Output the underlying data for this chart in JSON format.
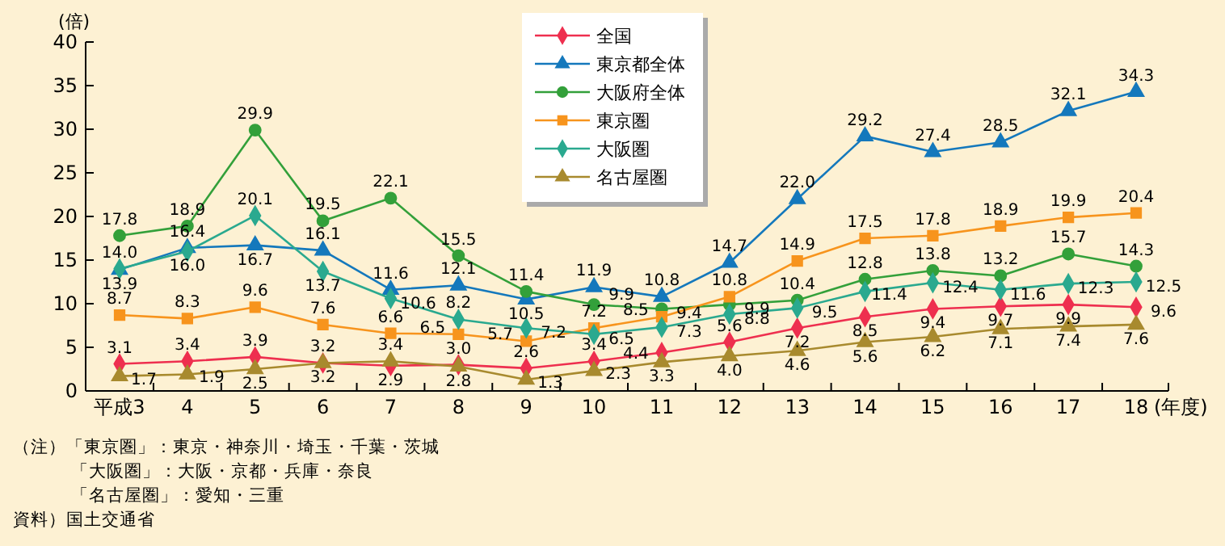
{
  "chart_data": {
    "type": "line",
    "ylabel": "(倍)",
    "xlabel": "(年度)",
    "categories": [
      "平成3",
      "4",
      "5",
      "6",
      "7",
      "8",
      "9",
      "10",
      "11",
      "12",
      "13",
      "14",
      "15",
      "16",
      "17",
      "18"
    ],
    "series": [
      {
        "name": "全国",
        "color": "#ee2f4f",
        "marker": "diamond",
        "values": [
          3.1,
          3.4,
          3.9,
          3.2,
          2.9,
          3.0,
          2.6,
          3.4,
          4.4,
          5.6,
          7.2,
          8.5,
          9.4,
          9.7,
          9.9,
          9.6
        ],
        "value_labels": [
          "3.1",
          "3.4",
          "3.9",
          "3.2",
          "2.9",
          "3.0",
          "2.6",
          "3.4",
          "4.4",
          "5.6",
          "7.2",
          "8.5",
          "9.4",
          "9.7",
          "9.9",
          "9.6"
        ]
      },
      {
        "name": "東京都全体",
        "color": "#1478bc",
        "marker": "triangle",
        "values": [
          13.9,
          16.4,
          16.7,
          16.1,
          11.6,
          12.1,
          10.5,
          11.9,
          10.8,
          14.7,
          22.0,
          29.2,
          27.4,
          28.5,
          32.1,
          34.3
        ],
        "value_labels": [
          "13.9",
          "16.4",
          "16.7",
          "16.1",
          "11.6",
          "12.1",
          "10.5",
          "11.9",
          "10.8",
          "14.7",
          "22.0",
          "29.2",
          "27.4",
          "28.5",
          "32.1",
          "34.3"
        ]
      },
      {
        "name": "大阪府全体",
        "color": "#33a03a",
        "marker": "circle",
        "values": [
          17.8,
          18.9,
          29.9,
          19.5,
          22.1,
          15.5,
          11.4,
          9.9,
          9.4,
          9.9,
          10.4,
          12.8,
          13.8,
          13.2,
          15.7,
          14.3
        ],
        "value_labels": [
          "17.8",
          "18.9",
          "29.9",
          "19.5",
          "22.1",
          "15.5",
          "11.4",
          "9.9",
          "9.4",
          "9.9",
          "10.4",
          "12.8",
          "13.8",
          "13.2",
          "15.7",
          "14.3"
        ]
      },
      {
        "name": "東京圏",
        "color": "#f7941d",
        "marker": "square",
        "values": [
          8.7,
          8.3,
          9.6,
          7.6,
          6.6,
          6.5,
          5.7,
          7.2,
          8.5,
          10.8,
          14.9,
          17.5,
          17.8,
          18.9,
          19.9,
          20.4
        ],
        "value_labels": [
          "8.7",
          "8.3",
          "9.6",
          "7.6",
          "6.6",
          "6.5",
          "5.7",
          "7.2",
          "8.5",
          "10.8",
          "14.9",
          "17.5",
          "17.8",
          "18.9",
          "19.9",
          "20.4"
        ]
      },
      {
        "name": "大阪圏",
        "color": "#2aa98f",
        "marker": "diamond",
        "values": [
          14.0,
          16.0,
          20.1,
          13.7,
          10.6,
          8.2,
          7.2,
          6.5,
          7.3,
          8.8,
          9.5,
          11.4,
          12.4,
          11.6,
          12.3,
          12.5
        ],
        "value_labels": [
          "14.0",
          "16.0",
          "20.1",
          "13.7",
          "10.6",
          "8.2",
          "7.2",
          "6.5",
          "7.3",
          "8.8",
          "9.5",
          "11.4",
          "12.4",
          "11.6",
          "12.3",
          "12.5"
        ]
      },
      {
        "name": "名古屋圏",
        "color": "#a88a2e",
        "marker": "triangle",
        "values": [
          1.7,
          1.9,
          2.5,
          3.2,
          3.4,
          2.8,
          1.3,
          2.3,
          3.3,
          4.0,
          4.6,
          5.6,
          6.2,
          7.1,
          7.4,
          7.6
        ],
        "value_labels": [
          "1.7",
          "1.9",
          "2.5",
          "3.2",
          "3.4",
          "2.8",
          "1.3",
          "2.3",
          "3.3",
          "4.0",
          "4.6",
          "5.6",
          "6.2",
          "7.1",
          "7.4",
          "7.6"
        ]
      }
    ],
    "ylim": [
      0,
      40
    ],
    "yticks": [
      0,
      5,
      10,
      15,
      20,
      25,
      30,
      35,
      40
    ],
    "grid": false,
    "legend": "top",
    "annotations": [
      "（注）「東京圏」：東京・神奈川・埼玉・千葉・茨城",
      "「大阪圏」：大阪・京都・兵庫・奈良",
      "「名古屋圏」：愛知・三重",
      "資料）国土交通省"
    ]
  }
}
